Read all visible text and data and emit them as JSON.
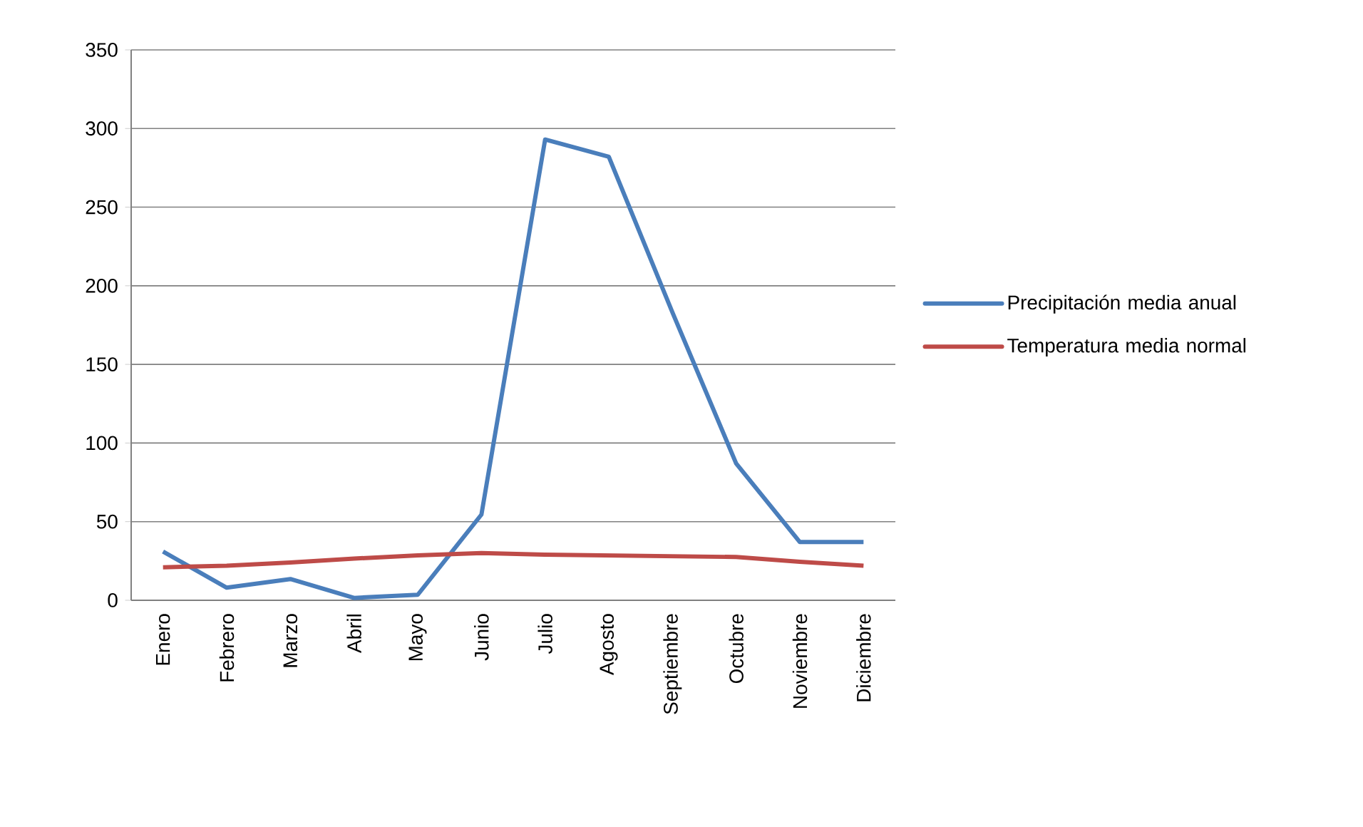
{
  "chart_data": {
    "type": "line",
    "categories": [
      "Enero",
      "Febrero",
      "Marzo",
      "Abril",
      "Mayo",
      "Junio",
      "Julio",
      "Agosto",
      "Septiembre",
      "Octubre",
      "Noviembre",
      "Diciembre"
    ],
    "series": [
      {
        "name": "Precipitación media anual",
        "color": "#4a7ebb",
        "values": [
          31,
          8,
          13.5,
          1.5,
          3.5,
          54.5,
          293,
          282,
          183,
          87,
          37,
          37
        ]
      },
      {
        "name": "Temperatura media normal",
        "color": "#be4b48",
        "values": [
          21,
          22,
          24,
          26.5,
          28.5,
          30,
          29,
          28.5,
          28,
          27.5,
          24.5,
          22
        ]
      }
    ],
    "ylim": [
      0,
      350
    ],
    "yticks": [
      0,
      50,
      100,
      150,
      200,
      250,
      300,
      350
    ],
    "grid": "y",
    "legend": "right",
    "marker": "none",
    "line_style": "solid"
  }
}
